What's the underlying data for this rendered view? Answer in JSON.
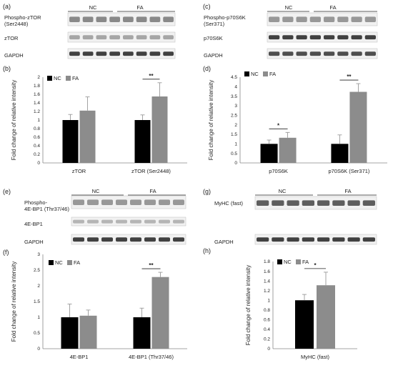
{
  "figure": {
    "panels": {
      "a": {
        "label": "(a)",
        "groups": [
          "NC",
          "FA"
        ],
        "bands": [
          "Phospho-zTOR\n(Ser2448)",
          "zTOR",
          "GAPDH"
        ]
      },
      "c": {
        "label": "(c)",
        "groups": [
          "NC",
          "FA"
        ],
        "bands": [
          "Phospho-p70S6K\n(Ser371)",
          "p70S6K",
          "GAPDH"
        ]
      },
      "e": {
        "label": "(e)",
        "groups": [
          "NC",
          "FA"
        ],
        "bands": [
          "Phospho-\n4E-BP1 (Thr37/46)",
          "4E-BP1",
          "GAPDH"
        ]
      },
      "g": {
        "label": "(g)",
        "groups": [
          "NC",
          "FA"
        ],
        "bands": [
          "MyHC (fast)",
          "GAPDH"
        ]
      }
    }
  },
  "chart_data": [
    {
      "id": "b",
      "label": "(b)",
      "type": "bar",
      "ylabel": "Fold change of relative intensity",
      "ylim": [
        0,
        2
      ],
      "yticks": [
        "0",
        "0.2",
        "0.4",
        "0.6",
        "0.8",
        "1",
        "1.2",
        "1.4",
        "1.6",
        "1.8",
        "2"
      ],
      "categories": [
        "zTOR",
        "zTOR (Ser2448)"
      ],
      "legend": [
        "NC",
        "FA"
      ],
      "series": [
        {
          "name": "NC",
          "values": [
            1.0,
            1.0
          ],
          "errors": [
            0.13,
            0.12
          ],
          "color": "#000000"
        },
        {
          "name": "FA",
          "values": [
            1.22,
            1.55
          ],
          "errors": [
            0.32,
            0.32
          ],
          "color": "#8c8c8c"
        }
      ],
      "annotations": [
        {
          "category": 1,
          "text": "**"
        }
      ]
    },
    {
      "id": "d",
      "label": "(d)",
      "type": "bar",
      "ylabel": "Fold change of relative intensity",
      "ylim": [
        0,
        4.5
      ],
      "yticks": [
        "0",
        "0.5",
        "1",
        "1.5",
        "2",
        "2.5",
        "3",
        "3.5",
        "4",
        "4.5"
      ],
      "categories": [
        "p70S6K",
        "p70S6K (Ser371)"
      ],
      "legend": [
        "NC",
        "FA"
      ],
      "series": [
        {
          "name": "NC",
          "values": [
            1.0,
            1.0
          ],
          "errors": [
            0.2,
            0.47
          ],
          "color": "#000000"
        },
        {
          "name": "FA",
          "values": [
            1.32,
            3.73
          ],
          "errors": [
            0.28,
            0.43
          ],
          "color": "#8c8c8c"
        }
      ],
      "annotations": [
        {
          "category": 0,
          "text": "*"
        },
        {
          "category": 1,
          "text": "**"
        }
      ]
    },
    {
      "id": "f",
      "label": "(f)",
      "type": "bar",
      "ylabel": "Fold change of relative intensity",
      "ylim": [
        0,
        3
      ],
      "yticks": [
        "0",
        "0.5",
        "1",
        "1.5",
        "2",
        "2.5",
        "3"
      ],
      "categories": [
        "4E-BP1",
        "4E-BP1 (Thr37/46)"
      ],
      "legend": [
        "NC",
        "FA"
      ],
      "series": [
        {
          "name": "NC",
          "values": [
            1.0,
            1.0
          ],
          "errors": [
            0.42,
            0.29
          ],
          "color": "#000000"
        },
        {
          "name": "FA",
          "values": [
            1.05,
            2.28
          ],
          "errors": [
            0.18,
            0.15
          ],
          "color": "#8c8c8c"
        }
      ],
      "annotations": [
        {
          "category": 1,
          "text": "**"
        }
      ]
    },
    {
      "id": "h",
      "label": "(h)",
      "type": "bar",
      "ylabel": "Fold change of relative intensity",
      "ylim": [
        0,
        1.8
      ],
      "yticks": [
        "0",
        "0.2",
        "0.4",
        "0.6",
        "0.8",
        "1",
        "1.2",
        "1.4",
        "1.6",
        "1.8"
      ],
      "categories": [
        "MyHC (fast)"
      ],
      "legend": [
        "NC",
        "FA"
      ],
      "series": [
        {
          "name": "NC",
          "values": [
            1.0
          ],
          "errors": [
            0.12
          ],
          "color": "#000000"
        },
        {
          "name": "FA",
          "values": [
            1.31
          ],
          "errors": [
            0.27
          ],
          "color": "#8c8c8c"
        }
      ],
      "annotations": [
        {
          "category": 0,
          "text": "*"
        }
      ]
    }
  ]
}
